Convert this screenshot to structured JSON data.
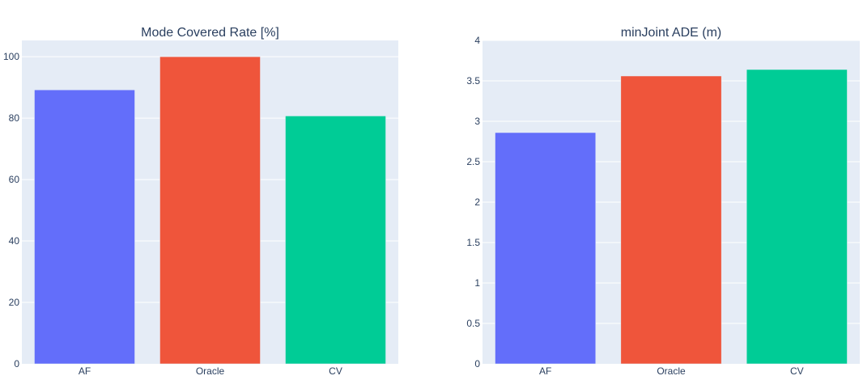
{
  "chart_data": [
    {
      "type": "bar",
      "title": "Mode Covered Rate [%]",
      "categories": [
        "AF",
        "Oracle",
        "CV"
      ],
      "values": [
        89.2,
        100,
        80.7
      ],
      "colors": [
        "#636efa",
        "#ef553b",
        "#00cc96"
      ],
      "xlabel": "",
      "ylabel": "",
      "ylim": [
        0,
        105.3
      ],
      "yticks": [
        0,
        20,
        40,
        60,
        80,
        100
      ],
      "ytick_labels": [
        "0",
        "20",
        "40",
        "60",
        "80",
        "100"
      ],
      "grid": true
    },
    {
      "type": "bar",
      "title": "minJoint ADE (m)",
      "categories": [
        "AF",
        "Oracle",
        "CV"
      ],
      "values": [
        2.86,
        3.56,
        3.64
      ],
      "colors": [
        "#636efa",
        "#ef553b",
        "#00cc96"
      ],
      "xlabel": "",
      "ylabel": "",
      "ylim": [
        0,
        4
      ],
      "yticks": [
        0,
        0.5,
        1,
        1.5,
        2,
        2.5,
        3,
        3.5,
        4
      ],
      "ytick_labels": [
        "0",
        "0.5",
        "1",
        "1.5",
        "2",
        "2.5",
        "3",
        "3.5",
        "4"
      ],
      "grid": true
    }
  ]
}
